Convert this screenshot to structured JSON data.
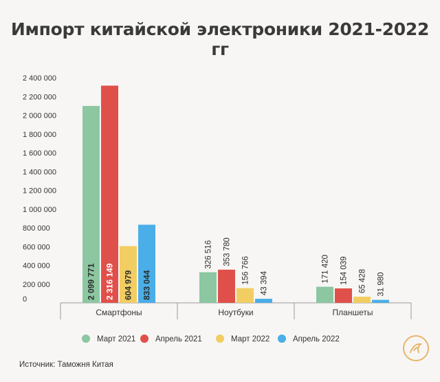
{
  "chart_data": {
    "type": "bar",
    "title": "Импорт китайской электроники 2021-2022 гг",
    "categories": [
      "Смартфоны",
      "Ноутбуки",
      "Планшеты"
    ],
    "series": [
      {
        "name": "Март 2021",
        "color": "#8cc7a1",
        "values": [
          2099771,
          326516,
          171420
        ],
        "labels": [
          "2 099 771",
          "326 516",
          "171 420"
        ]
      },
      {
        "name": "Апрель 2021",
        "color": "#e0504a",
        "values": [
          2316149,
          353780,
          154039
        ],
        "labels": [
          "2 316 149",
          "353 780",
          "154 039"
        ]
      },
      {
        "name": "Март 2022",
        "color": "#f2cd62",
        "values": [
          604979,
          156766,
          65428
        ],
        "labels": [
          "604 979",
          "156 766",
          "65 428"
        ]
      },
      {
        "name": "Апрель 2022",
        "color": "#4aaee8",
        "values": [
          833044,
          43394,
          31980
        ],
        "labels": [
          "833 044",
          "43 394",
          "31 980"
        ]
      }
    ],
    "ylim": [
      0,
      2400000
    ],
    "yticks": [
      0,
      200000,
      400000,
      600000,
      800000,
      1000000,
      1200000,
      1400000,
      1600000,
      1800000,
      2000000,
      2200000,
      2400000
    ],
    "ytick_labels": [
      "0",
      "200 000",
      "400 000",
      "600 000",
      "800 000",
      "1 000 000",
      "1 200 000",
      "1 400 000",
      "1 600 000",
      "1 800 000",
      "2 000 000",
      "2 200 000",
      "2 400 000"
    ],
    "grid": false,
    "legend_position": "bottom"
  },
  "source": "Источник: Таможня Китая"
}
